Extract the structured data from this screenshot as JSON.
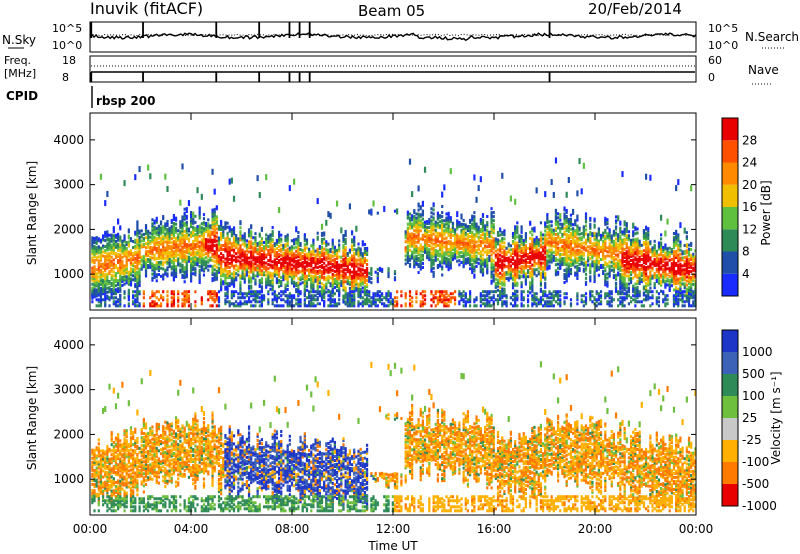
{
  "header": {
    "station": "Inuvik (fitACF)",
    "beam": "Beam 05",
    "date": "20/Feb/2014"
  },
  "top_panels": {
    "nsky_label": "N.Sky",
    "nsky_ticks": [
      "10^5",
      "10^0"
    ],
    "nsearch_label": "N.Search",
    "nsearch_ticks": [
      "10^5",
      "10^0"
    ],
    "freq_label_line1": "Freq.",
    "freq_label_line2": "[MHz]",
    "freq_ticks": [
      "18",
      "8"
    ],
    "nave_label": "Nave",
    "nave_ticks": [
      "60",
      "0"
    ],
    "cpid_label": "CPID",
    "cpid_value": "rbsp 200"
  },
  "chart_data": [
    {
      "type": "heatmap",
      "panel": "power",
      "ylabel": "Slant Range [km]",
      "ylim": [
        200,
        4600
      ],
      "yticks": [
        "1000",
        "2000",
        "3000",
        "4000"
      ],
      "xlim_hours": [
        0,
        24
      ],
      "colorbar": {
        "label": "Power [dB]",
        "ticks": [
          "4",
          "8",
          "12",
          "16",
          "20",
          "24",
          "28"
        ],
        "colors": [
          "#1a2bff",
          "#1f4fa8",
          "#2e8b57",
          "#5fbf3f",
          "#f0c000",
          "#ff8a00",
          "#ff5000",
          "#e80000"
        ]
      }
    },
    {
      "type": "heatmap",
      "panel": "velocity",
      "ylabel": "Slant Range [km]",
      "ylim": [
        200,
        4600
      ],
      "yticks": [
        "1000",
        "2000",
        "3000",
        "4000"
      ],
      "xlim_hours": [
        0,
        24
      ],
      "xticks": [
        "00:00",
        "04:00",
        "08:00",
        "12:00",
        "16:00",
        "20:00",
        "00:00"
      ],
      "xlabel": "Time UT",
      "colorbar": {
        "label": "Velocity [m s⁻¹]",
        "ticks": [
          "1000",
          "500",
          "100",
          "25",
          "-25",
          "-100",
          "-500",
          "-1000"
        ],
        "colors": [
          "#1d36c8",
          "#3c62b8",
          "#2e8b57",
          "#6fbf3f",
          "#c8c8c8",
          "#ffb000",
          "#ff7a00",
          "#e80000"
        ]
      }
    }
  ]
}
